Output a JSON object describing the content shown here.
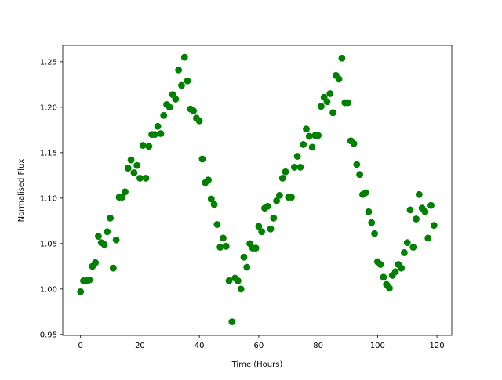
{
  "chart_data": {
    "type": "scatter",
    "title": "",
    "xlabel": "Time (Hours)",
    "ylabel": "Normalised Flux",
    "xlim": [
      -6,
      125
    ],
    "ylim": [
      0.949,
      1.268
    ],
    "xticks": [
      0,
      20,
      40,
      60,
      80,
      100,
      120
    ],
    "xtick_labels": [
      "0",
      "20",
      "40",
      "60",
      "80",
      "100",
      "120"
    ],
    "yticks": [
      0.95,
      1.0,
      1.05,
      1.1,
      1.15,
      1.2,
      1.25
    ],
    "ytick_labels": [
      "0.95",
      "1.00",
      "1.05",
      "1.10",
      "1.15",
      "1.20",
      "1.25"
    ],
    "grid": false,
    "legend": "none",
    "marker_color": "#008000",
    "series": [
      {
        "x": [
          0,
          1,
          2,
          3,
          4,
          5,
          6,
          7,
          8,
          9,
          10,
          11,
          12,
          13,
          14,
          15,
          16,
          17,
          18,
          19,
          20,
          21,
          22,
          23,
          24,
          25,
          26,
          27,
          28,
          29,
          30,
          31,
          32,
          33,
          34,
          35,
          36,
          37,
          38,
          39,
          40,
          41,
          42,
          43,
          44,
          45,
          46,
          47,
          48,
          49,
          50,
          51,
          52,
          53,
          54,
          55,
          56,
          57,
          58,
          59,
          60,
          61,
          62,
          63,
          64,
          65,
          66,
          67,
          68,
          69,
          70,
          71,
          72,
          73,
          74,
          75,
          76,
          77,
          78,
          79,
          80,
          81,
          82,
          83,
          84,
          85,
          86,
          87,
          88,
          89,
          90,
          91,
          92,
          93,
          94,
          95,
          96,
          97,
          98,
          99,
          100,
          101,
          102,
          103,
          104,
          105,
          106,
          107,
          108,
          109,
          110,
          111,
          112,
          113,
          114,
          115,
          116,
          117,
          118,
          119
        ],
        "y": [
          0.997,
          1.009,
          1.009,
          1.01,
          1.025,
          1.029,
          1.058,
          1.051,
          1.049,
          1.063,
          1.078,
          1.023,
          1.054,
          1.101,
          1.101,
          1.107,
          1.133,
          1.142,
          1.128,
          1.136,
          1.122,
          1.158,
          1.122,
          1.157,
          1.17,
          1.17,
          1.179,
          1.171,
          1.191,
          1.203,
          1.2,
          1.214,
          1.209,
          1.241,
          1.224,
          1.255,
          1.229,
          1.198,
          1.196,
          1.188,
          1.185,
          1.143,
          1.117,
          1.12,
          1.099,
          1.093,
          1.071,
          1.046,
          1.056,
          1.047,
          1.009,
          0.964,
          1.012,
          1.009,
          1.0,
          1.035,
          1.024,
          1.05,
          1.045,
          1.045,
          1.069,
          1.063,
          1.089,
          1.091,
          1.066,
          1.078,
          1.097,
          1.103,
          1.122,
          1.129,
          1.101,
          1.101,
          1.134,
          1.146,
          1.134,
          1.159,
          1.176,
          1.168,
          1.156,
          1.169,
          1.169,
          1.201,
          1.211,
          1.206,
          1.215,
          1.194,
          1.235,
          1.231,
          1.254,
          1.205,
          1.205,
          1.163,
          1.16,
          1.137,
          1.126,
          1.104,
          1.106,
          1.085,
          1.073,
          1.061,
          1.03,
          1.027,
          1.013,
          1.005,
          1.001,
          1.015,
          1.019,
          1.027,
          1.023,
          1.04,
          1.051,
          1.087,
          1.046,
          1.077,
          1.104,
          1.089,
          1.085,
          1.056,
          1.092,
          1.07
        ]
      }
    ]
  }
}
